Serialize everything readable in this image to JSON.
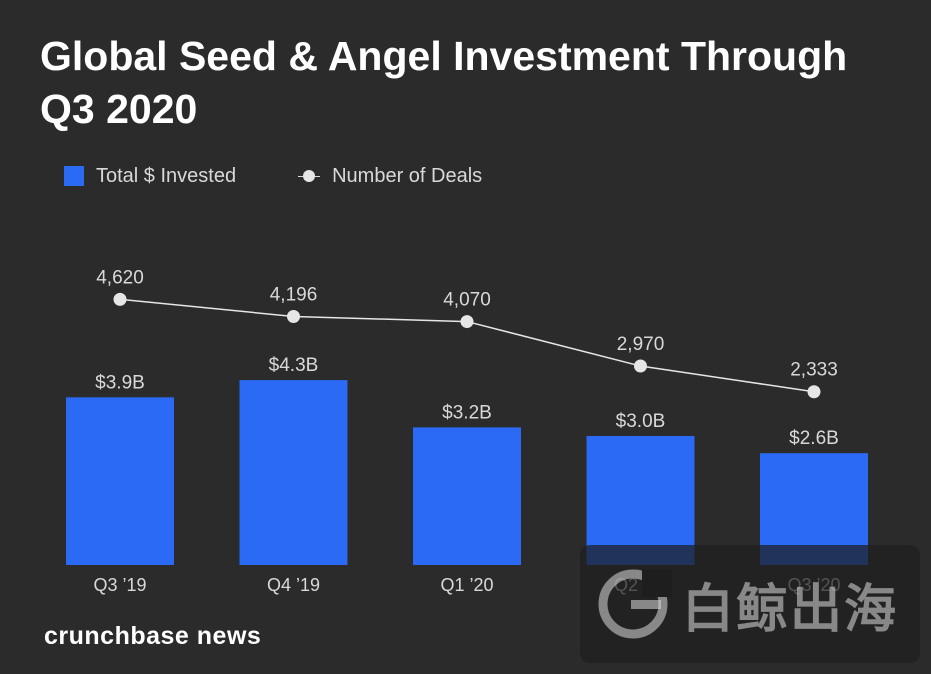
{
  "chart_data": {
    "type": "bar",
    "title": "Global Seed & Angel Investment Through Q3 2020",
    "categories": [
      "Q3 ’19",
      "Q4 ’19",
      "Q1 ’20",
      "Q2 ’20",
      "Q3 ’20"
    ],
    "series": [
      {
        "name": "Total $ Invested",
        "type": "bar",
        "values": [
          3.9,
          4.3,
          3.2,
          3.0,
          2.6
        ],
        "labels": [
          "$3.9B",
          "$4.3B",
          "$3.2B",
          "$3.0B",
          "$2.6B"
        ],
        "color": "#2a6af5"
      },
      {
        "name": "Number of Deals",
        "type": "line",
        "values": [
          4620,
          4196,
          4070,
          2970,
          2333
        ],
        "labels": [
          "4,620",
          "4,196",
          "4,070",
          "2,970",
          "2,333"
        ],
        "color": "#e6e6e6"
      }
    ],
    "legend_position": "top-left",
    "grid": false
  },
  "branding": {
    "footer": "crunchbase news",
    "watermark_text": "白鲸出海"
  },
  "colors": {
    "background": "#2b2b2b",
    "bar": "#2a6af5",
    "line": "#e6e6e6",
    "label": "#d9d9d9"
  }
}
